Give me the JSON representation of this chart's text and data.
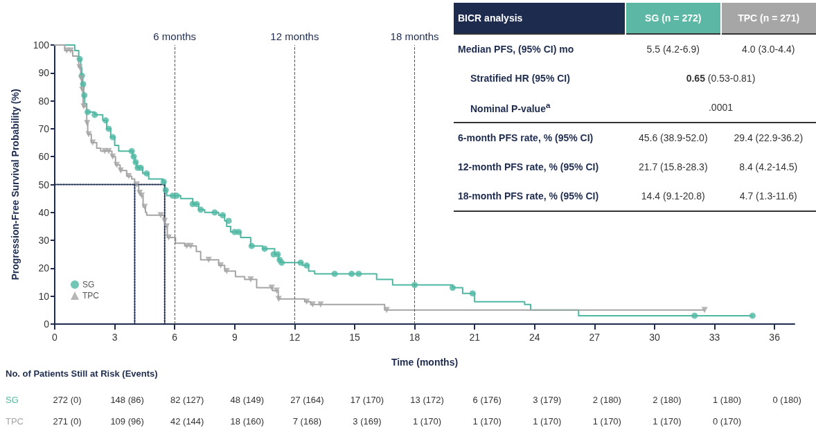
{
  "chart_data": [
    {
      "type": "step",
      "xlabel": "Time (months)",
      "ylabel": "Progression-Free Survival Probability (%)",
      "xlim": [
        0,
        37
      ],
      "xticks": [
        0,
        3,
        6,
        9,
        12,
        15,
        18,
        21,
        24,
        27,
        30,
        33,
        36
      ],
      "ylim": [
        0,
        100
      ],
      "yticks": [
        0,
        10,
        20,
        30,
        40,
        50,
        60,
        70,
        80,
        90,
        100
      ],
      "grid": false,
      "legend": "bottom left",
      "series": [
        {
          "color": "#4fb8a3",
          "marker": "none",
          "x": [
            0,
            1.0,
            1.2,
            1.3,
            1.35,
            1.4,
            1.45,
            1.5,
            1.6,
            2.0,
            2.4,
            2.6,
            2.8,
            3.0,
            3.2,
            3.9,
            4.0,
            4.1,
            4.4,
            4.7,
            5.4,
            5.5,
            5.6,
            6.3,
            6.9,
            7.2,
            7.5,
            8.2,
            8.5,
            8.6,
            8.8,
            9.3,
            9.8,
            10.4,
            11.0,
            11.2,
            11.3,
            12.4,
            12.7,
            13.0,
            16.1,
            16.9,
            19.9,
            20.4,
            21.0,
            23.5,
            23.8,
            26.2,
            34.9
          ],
          "values": [
            100,
            98,
            95,
            92,
            89,
            86,
            82,
            79,
            76,
            75,
            73,
            70,
            67,
            64,
            62,
            60,
            58,
            56,
            54,
            52,
            51,
            48,
            46,
            45,
            43,
            41,
            40,
            39,
            37,
            35,
            33,
            31,
            28,
            27,
            25,
            23,
            22,
            21,
            19,
            18,
            16,
            14,
            13,
            11,
            8,
            7,
            5,
            3,
            3
          ]
        },
        {
          "color": "#a5a5a5",
          "marker": "none",
          "x": [
            0,
            0.5,
            0.9,
            1.2,
            1.3,
            1.35,
            1.42,
            1.6,
            1.65,
            1.83,
            2.1,
            2.3,
            2.86,
            3.04,
            3.27,
            3.6,
            3.85,
            4.0,
            4.2,
            4.3,
            4.42,
            4.54,
            4.6,
            5.46,
            5.52,
            5.63,
            6.04,
            6.5,
            7.08,
            7.3,
            8.2,
            8.5,
            9.04,
            9.5,
            10.1,
            10.9,
            11.18,
            12.5,
            12.8,
            16.5,
            32.5
          ],
          "values": [
            100,
            98,
            96,
            92,
            88,
            84,
            78,
            72,
            68,
            65,
            63,
            62,
            60,
            57,
            55,
            53,
            52,
            50,
            47,
            46,
            42,
            40,
            39,
            37,
            35,
            31,
            29,
            28,
            26,
            23,
            21,
            19,
            17,
            16,
            13,
            12,
            9,
            8,
            7,
            5,
            5
          ]
        },
        {
          "type": "scatter",
          "name": "SG",
          "color": "#4fb8a3",
          "marker": "circle",
          "x": [
            1.25,
            1.36,
            1.42,
            1.48,
            1.65,
            2.0,
            2.55,
            2.7,
            2.9,
            3.85,
            3.95,
            4.05,
            4.15,
            4.3,
            4.6,
            5.45,
            5.55,
            5.9,
            6.1,
            6.9,
            7.1,
            7.3,
            8.0,
            8.4,
            8.7,
            9.0,
            9.2,
            9.85,
            10.5,
            10.95,
            11.15,
            11.25,
            11.35,
            12.3,
            12.6,
            14.0,
            14.85,
            15.2,
            18.0,
            19.9,
            20.9,
            32.0,
            34.9
          ],
          "values": [
            95,
            89,
            86,
            82,
            76,
            75,
            73,
            70,
            67,
            62,
            60,
            58,
            56,
            56,
            54,
            51,
            48,
            46,
            46,
            43,
            43,
            41,
            40,
            39,
            37,
            33,
            33,
            28,
            27,
            25,
            25,
            23,
            22,
            22,
            21,
            18,
            18,
            18,
            14,
            13,
            11,
            3,
            3
          ]
        },
        {
          "type": "scatter",
          "name": "TPC",
          "color": "#a5a5a5",
          "marker": "triangle",
          "x": [
            0.6,
            0.8,
            1.25,
            1.32,
            1.38,
            1.45,
            1.62,
            1.7,
            1.9,
            2.5,
            2.7,
            2.9,
            3.1,
            3.3,
            3.7,
            4.1,
            4.25,
            4.35,
            4.5,
            5.3,
            5.5,
            5.6,
            5.7,
            6.6,
            6.8,
            7.7,
            8.3,
            8.6,
            9.8,
            10.85,
            11.1,
            11.2,
            12.6,
            12.9,
            13.3,
            16.6,
            32.5
          ],
          "values": [
            98,
            98,
            92,
            88,
            84,
            78,
            72,
            68,
            65,
            62,
            62,
            60,
            57,
            55,
            53,
            50,
            47,
            46,
            42,
            39,
            37,
            35,
            31,
            28,
            28,
            23,
            21,
            19,
            16,
            13,
            12,
            9,
            8,
            7,
            7,
            5,
            5
          ]
        },
        {
          "type": "line",
          "color": "#1d2b4f",
          "line_style": "dotted",
          "marker": "none",
          "x": [
            0,
            5.5
          ],
          "values": [
            50,
            50
          ]
        },
        {
          "type": "line",
          "color": "#1d2b4f",
          "line_style": "dotted",
          "marker": "none",
          "x": [
            4.0,
            4.0
          ],
          "values": [
            50,
            0
          ]
        },
        {
          "type": "line",
          "color": "#1d2b4f",
          "line_style": "dotted",
          "marker": "none",
          "x": [
            5.5,
            5.5
          ],
          "values": [
            50,
            0
          ]
        }
      ],
      "ref_lines": [
        {
          "axis": "x",
          "value": 6,
          "label": "6 months",
          "color": "#555555",
          "line_style": "dashed"
        },
        {
          "axis": "x",
          "value": 12,
          "label": "12 months",
          "color": "#555555",
          "line_style": "dashed"
        },
        {
          "axis": "x",
          "value": 18,
          "label": "18 months",
          "color": "#555555",
          "line_style": "dashed"
        }
      ]
    },
    {
      "type": "other",
      "title": "BICR analysis",
      "categories": [
        "SG (n = 272)",
        "TPC (n = 271)"
      ],
      "colors": [
        "#5cb8a5",
        "#a6a6a6"
      ],
      "y_categories": [
        "Median PFS, (95% CI) mo",
        "Stratified HR (95% CI)",
        "Nominal P-value$^{a}$",
        "6-month PFS rate, % (95% CI)",
        "12-month PFS rate, % (95% CI)",
        "18-month PFS rate, % (95% CI)"
      ],
      "cell_labels": [
        [
          "5.5 (4.2-6.9)",
          "4.0 (3.0-4.4)"
        ],
        [
          "0.65 (0.53-0.81)",
          null
        ],
        [
          ".0001",
          null
        ],
        [
          "45.6 (38.9-52.0)",
          "29.4 (22.9-36.2)"
        ],
        [
          "21.7 (15.8-28.3)",
          "8.4 (4.2-14.5)"
        ],
        [
          "14.4 (9.1-20.8)",
          "4.7 (1.3-11.6)"
        ]
      ]
    },
    {
      "type": "other",
      "title": "No. of Patients Still at Risk (Events)",
      "y_categories": [
        "SG",
        "TPC"
      ],
      "colors": [
        "#4fb8a3",
        "#a5a5a5"
      ],
      "cell_labels": [
        [
          "272 (0)",
          "148 (86)",
          "82 (127)",
          "48 (149)",
          "27 (164)",
          "17 (170)",
          "13 (172)",
          "6 (176)",
          "3 (179)",
          "2 (180)",
          "2 (180)",
          "1 (180)",
          "0 (180)"
        ],
        [
          "271 (0)",
          "109 (96)",
          "42 (144)",
          "18 (160)",
          "7 (168)",
          "3 (169)",
          "1 (170)",
          "1 (170)",
          "1 (170)",
          "1 (170)",
          "1 (170)",
          "0 (170)",
          null
        ]
      ]
    }
  ]
}
